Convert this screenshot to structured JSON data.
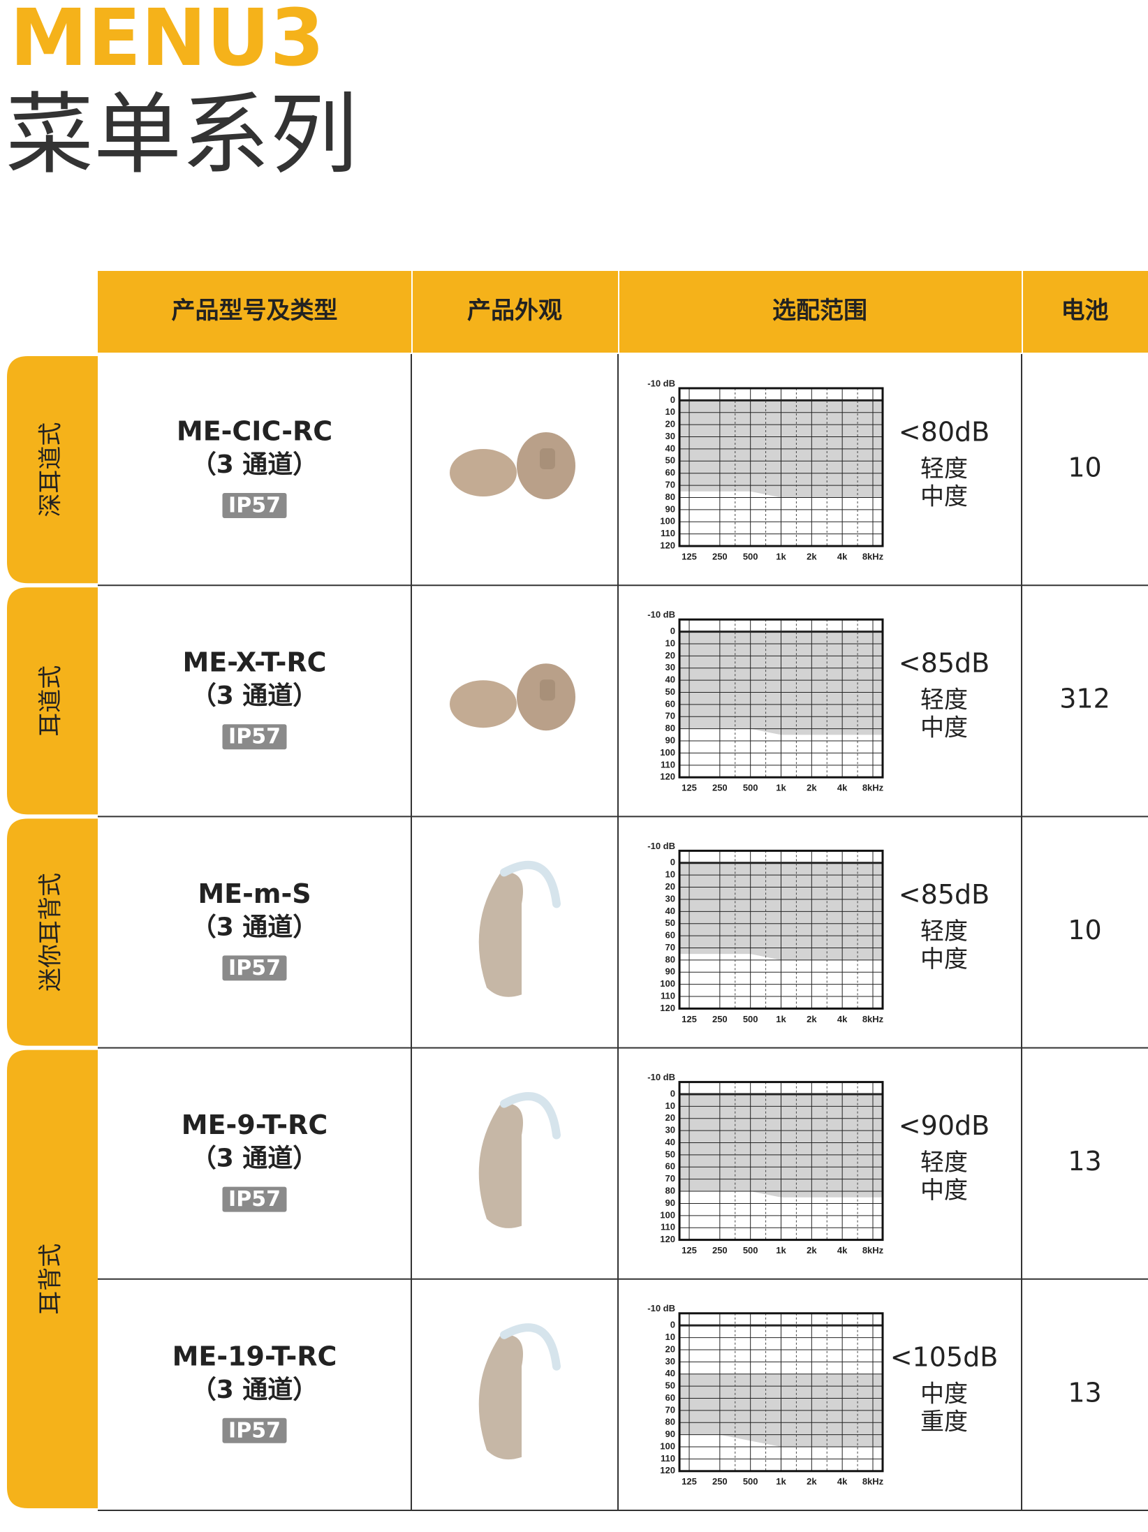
{
  "header": {
    "title": "MENU3",
    "subtitle": "菜单系列"
  },
  "table": {
    "columns": [
      "产品型号及类型",
      "产品外观",
      "选配范围",
      "电池"
    ],
    "groups": [
      {
        "label": "深耳道式",
        "rows": [
          {
            "model": "ME-CIC-RC",
            "channels": "（3 通道）",
            "rating": "IP57",
            "range": "<80dB",
            "degrees": [
              "轻度",
              "中度"
            ],
            "battery": "10",
            "fit": {
              "top": 0,
              "bottom": [
                75,
                75,
                75,
                80,
                80,
                80,
                80
              ]
            }
          }
        ]
      },
      {
        "label": "耳道式",
        "rows": [
          {
            "model": "ME-X-T-RC",
            "channels": "（3 通道）",
            "rating": "IP57",
            "range": "<85dB",
            "degrees": [
              "轻度",
              "中度"
            ],
            "battery": "312",
            "fit": {
              "top": 0,
              "bottom": [
                80,
                80,
                80,
                85,
                85,
                85,
                85
              ]
            }
          }
        ]
      },
      {
        "label": "迷你耳背式",
        "rows": [
          {
            "model": "ME-m-S",
            "channels": "（3 通道）",
            "rating": "IP57",
            "range": "<85dB",
            "degrees": [
              "轻度",
              "中度"
            ],
            "battery": "10",
            "fit": {
              "top": 0,
              "bottom": [
                75,
                75,
                75,
                80,
                80,
                80,
                80
              ]
            }
          }
        ]
      },
      {
        "label": "耳背式",
        "rows": [
          {
            "model": "ME-9-T-RC",
            "channels": "（3 通道）",
            "rating": "IP57",
            "range": "<90dB",
            "degrees": [
              "轻度",
              "中度"
            ],
            "battery": "13",
            "fit": {
              "top": 0,
              "bottom": [
                80,
                80,
                80,
                85,
                85,
                85,
                85
              ]
            }
          },
          {
            "model": "ME-19-T-RC",
            "channels": "（3 通道）",
            "rating": "IP57",
            "range": "<105dB",
            "degrees": [
              "中度",
              "重度"
            ],
            "battery": "13",
            "fit": {
              "top": 40,
              "bottom": [
                90,
                90,
                95,
                100,
                100,
                100,
                100
              ]
            }
          }
        ]
      }
    ]
  },
  "audiogram": {
    "ylim": [
      -10,
      120
    ],
    "yticks": [
      {
        "value": -10,
        "label": "-10 dB"
      },
      0,
      10,
      20,
      30,
      40,
      50,
      60,
      70,
      80,
      90,
      100,
      110,
      120
    ],
    "xticks": [
      "125",
      "250",
      "500",
      "1k",
      "2k",
      "4k",
      "8kHz"
    ]
  }
}
